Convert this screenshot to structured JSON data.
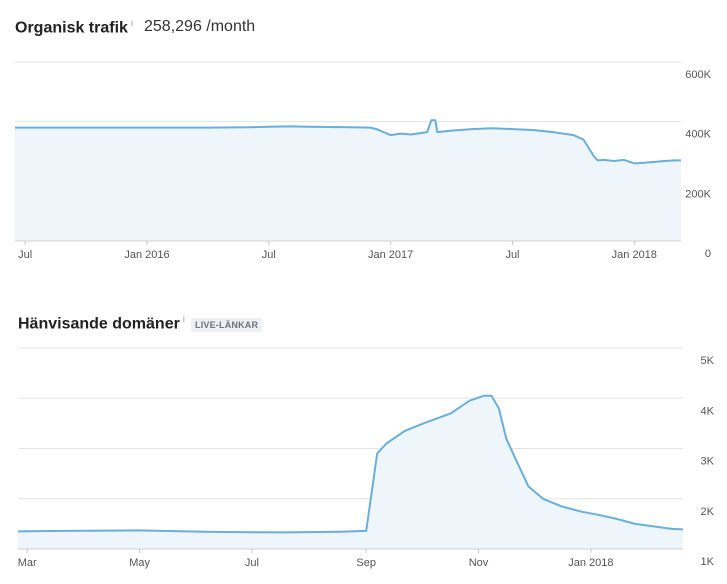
{
  "charts": {
    "traffic": {
      "title": "Organisk trafik",
      "info": "i",
      "metric": "258,296 /month"
    },
    "domains": {
      "title": "Hänvisande domäner",
      "info": "i",
      "badge": "LIVE-LÄNKAR"
    }
  },
  "colors": {
    "line": "#6aaedb",
    "fill": "#eef6fc",
    "grid": "#e3e3e3"
  },
  "chart_data": [
    {
      "type": "area",
      "title": "Organisk trafik",
      "x_ticks": [
        "Jul",
        "Jan 2016",
        "Jul",
        "Jan 2017",
        "Jul",
        "Jan 2018"
      ],
      "x_tick_pos": [
        0.0,
        6.0,
        12.0,
        18.0,
        24.0,
        30.0
      ],
      "y_ticks": [
        "600K",
        "400K",
        "200K",
        "0"
      ],
      "y_tick_values": [
        600000,
        400000,
        200000,
        0
      ],
      "ylim": [
        0,
        600000
      ],
      "xlim": [
        -0.5,
        32.3
      ],
      "grid": true,
      "series": [
        {
          "x": [
            -0.5,
            1,
            3,
            5,
            7,
            9,
            11,
            12,
            13,
            14,
            15,
            16,
            17,
            17.3,
            18,
            18.5,
            19,
            19.8,
            20.0,
            20.2,
            20.3,
            21,
            22,
            23,
            24,
            25,
            26,
            27,
            27.5,
            28,
            28.2,
            28.5,
            29,
            29.5,
            30,
            30.5,
            31,
            31.5,
            32,
            32.3
          ],
          "y": [
            380000,
            380000,
            380000,
            380000,
            380000,
            380000,
            381000,
            383000,
            384000,
            383000,
            382000,
            381000,
            380000,
            375000,
            355000,
            360000,
            357000,
            365000,
            405000,
            405000,
            365000,
            370000,
            375000,
            378000,
            375000,
            372000,
            365000,
            355000,
            340000,
            285000,
            270000,
            272000,
            268000,
            272000,
            260000,
            262000,
            265000,
            268000,
            270000,
            270000
          ]
        }
      ]
    },
    {
      "type": "area",
      "title": "Hänvisande domäner",
      "x_ticks": [
        "Mar",
        "May",
        "Jul",
        "Sep",
        "Nov",
        "Jan 2018"
      ],
      "x_tick_pos": [
        0,
        61,
        122,
        184,
        245,
        306
      ],
      "y_ticks": [
        "5K",
        "4K",
        "3K",
        "2K",
        "1K"
      ],
      "y_tick_values": [
        5000,
        4000,
        3000,
        2000,
        1000
      ],
      "ylim": [
        1000,
        5000
      ],
      "xlim": [
        -5,
        356
      ],
      "grid": true,
      "series": [
        {
          "x": [
            -5,
            20,
            60,
            100,
            140,
            170,
            184,
            190,
            195,
            205,
            215,
            230,
            240,
            248,
            252,
            256,
            260,
            265,
            272,
            280,
            290,
            300,
            310,
            320,
            330,
            340,
            350,
            356
          ],
          "y": [
            1350,
            1360,
            1370,
            1340,
            1330,
            1345,
            1360,
            2900,
            3100,
            3350,
            3500,
            3700,
            3950,
            4050,
            4050,
            3800,
            3200,
            2800,
            2250,
            2000,
            1850,
            1750,
            1680,
            1600,
            1500,
            1450,
            1400,
            1390
          ]
        }
      ]
    }
  ]
}
